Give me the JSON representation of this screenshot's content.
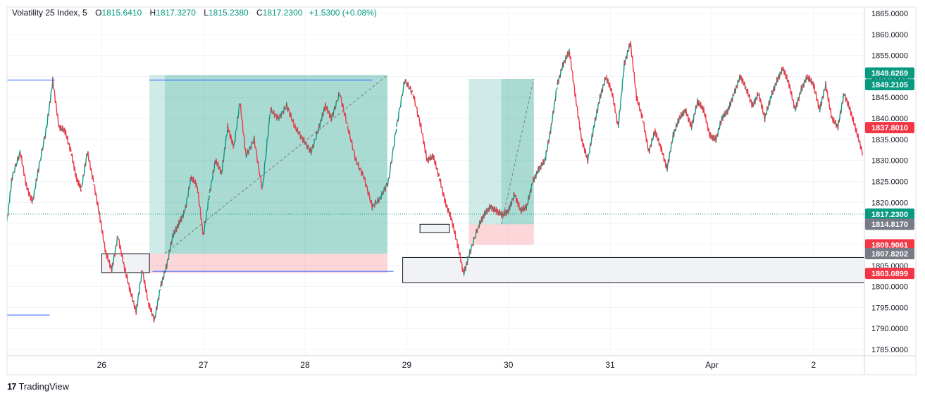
{
  "legend": {
    "symbol": "Volatility 25 Index, 5",
    "o_label": "O",
    "o_value": "1815.6410",
    "h_label": "H",
    "h_value": "1817.3270",
    "l_label": "L",
    "l_value": "1815.2380",
    "c_label": "C",
    "c_value": "1817.2300",
    "change": "+1.5300 (+0.08%)"
  },
  "brand": {
    "logo": "17",
    "name": "TradingView"
  },
  "colors": {
    "up": "#089981",
    "down": "#f23645",
    "profit_zone": "#089981",
    "loss_zone": "#f23645",
    "level_line": "#2962ff",
    "box_fill": "#eceff2"
  },
  "chart_data": {
    "type": "line",
    "title": "",
    "ylim": [
      1783.5,
      1866.5
    ],
    "y_ticks": [
      "1785.0000",
      "1790.0000",
      "1795.0000",
      "1800.0000",
      "1805.0000",
      "1810.0000",
      "1815.0000",
      "1820.0000",
      "1825.0000",
      "1830.0000",
      "1835.0000",
      "1840.0000",
      "1845.0000",
      "1850.0000",
      "1855.0000",
      "1860.0000",
      "1865.0000"
    ],
    "x_ticks": [
      {
        "label": "26",
        "t": 1
      },
      {
        "label": "27",
        "t": 2
      },
      {
        "label": "28",
        "t": 3
      },
      {
        "label": "29",
        "t": 4
      },
      {
        "label": "30",
        "t": 5
      },
      {
        "label": "31",
        "t": 6
      },
      {
        "label": "Apr",
        "t": 7
      },
      {
        "label": "2",
        "t": 8
      }
    ],
    "xlim": [
      0.07,
      8.5
    ],
    "grid": true,
    "series": [
      {
        "values_x": [
          0.07,
          0.12,
          0.2,
          0.26,
          0.32,
          0.38,
          0.46,
          0.52,
          0.58,
          0.64,
          0.7,
          0.75,
          0.8,
          0.86,
          0.92,
          0.98,
          1.04,
          1.1,
          1.16,
          1.22,
          1.28,
          1.34,
          1.4,
          1.46,
          1.52,
          1.58,
          1.64,
          1.7,
          1.76,
          1.82,
          1.88,
          1.94,
          2.0,
          2.06,
          2.12,
          2.18,
          2.24,
          2.3,
          2.36,
          2.42,
          2.5,
          2.58,
          2.66,
          2.74,
          2.82,
          2.9,
          2.98,
          3.06,
          3.14,
          3.2,
          3.26,
          3.34,
          3.42,
          3.5,
          3.58,
          3.66,
          3.74,
          3.82,
          3.9,
          3.98,
          4.06,
          4.14,
          4.2,
          4.26,
          4.32,
          4.38,
          4.44,
          4.5,
          4.56,
          4.62,
          4.7,
          4.76,
          4.82,
          4.88,
          4.94,
          5.0,
          5.06,
          5.12,
          5.18,
          5.24,
          5.3,
          5.36,
          5.42,
          5.48,
          5.54,
          5.6,
          5.66,
          5.72,
          5.78,
          5.84,
          5.9,
          5.96,
          6.02,
          6.08,
          6.14,
          6.2,
          6.26,
          6.32,
          6.38,
          6.44,
          6.5,
          6.56,
          6.62,
          6.68,
          6.74,
          6.8,
          6.86,
          6.92,
          6.98,
          7.04,
          7.1,
          7.16,
          7.22,
          7.28,
          7.34,
          7.4,
          7.46,
          7.52,
          7.58,
          7.64,
          7.7,
          7.76,
          7.82,
          7.88,
          7.94,
          8.0,
          8.06,
          8.12,
          8.18,
          8.24,
          8.3,
          8.36,
          8.42,
          8.48
        ],
        "values": [
          1815.5,
          1826,
          1832,
          1824,
          1820,
          1828,
          1838,
          1849,
          1838,
          1837,
          1832,
          1826,
          1823,
          1832,
          1825,
          1817,
          1808,
          1804,
          1812,
          1805,
          1799,
          1794,
          1804,
          1796,
          1792,
          1800,
          1805,
          1812,
          1815,
          1818,
          1826,
          1824,
          1812,
          1822,
          1830,
          1827,
          1838,
          1833,
          1844,
          1831,
          1835,
          1823,
          1842,
          1840,
          1843,
          1838,
          1835,
          1832,
          1838,
          1843,
          1840,
          1846,
          1838,
          1830,
          1826,
          1819,
          1821,
          1825,
          1838,
          1849,
          1846,
          1838,
          1830,
          1831,
          1826,
          1820,
          1816,
          1810,
          1803,
          1808,
          1814,
          1817,
          1819,
          1818,
          1817,
          1818,
          1822,
          1818,
          1819,
          1825,
          1828,
          1830,
          1838,
          1848,
          1853,
          1856,
          1845,
          1835,
          1830,
          1838,
          1845,
          1850,
          1846,
          1838,
          1853,
          1858,
          1845,
          1840,
          1832,
          1837,
          1833,
          1828,
          1836,
          1840,
          1842,
          1838,
          1844,
          1842,
          1836,
          1835,
          1840,
          1842,
          1846,
          1850,
          1847,
          1843,
          1846,
          1840,
          1845,
          1849,
          1852,
          1848,
          1842,
          1847,
          1850,
          1848,
          1842,
          1848,
          1840,
          1838,
          1846,
          1842,
          1837,
          1832
        ],
        "trace_label": "1849.2105"
      }
    ],
    "price_labels": [
      {
        "value": 1849.6269,
        "text": "1849.6269",
        "kind": "up"
      },
      {
        "value": 1849.2105,
        "text": "1849.2105",
        "kind": "up"
      },
      {
        "value": 1837.801,
        "text": "1837.8010",
        "kind": "down"
      },
      {
        "value": 1817.23,
        "text": "1817.2300",
        "kind": "up"
      },
      {
        "value": 1814.817,
        "text": "1814.8170",
        "kind": "gray"
      },
      {
        "value": 1809.9061,
        "text": "1809.9061",
        "kind": "down"
      },
      {
        "value": 1807.8202,
        "text": "1807.8202",
        "kind": "gray"
      },
      {
        "value": 1803.0899,
        "text": "1803.0899",
        "kind": "down"
      }
    ],
    "current_price": 1817.23,
    "positions": [
      {
        "x0": 1.47,
        "x1": 3.81,
        "entry": 1807.8,
        "target": 1850.3,
        "stop": 1803.2,
        "trade_end": 1.62
      },
      {
        "x0": 4.61,
        "x1": 5.25,
        "entry": 1814.8,
        "target": 1849.4,
        "stop": 1809.9,
        "trade_end": 4.93
      }
    ],
    "boxes": [
      {
        "x0": 1.0,
        "x1": 1.47,
        "y0": 1803.3,
        "y1": 1807.8
      },
      {
        "x0": 4.13,
        "x1": 4.42,
        "y0": 1812.8,
        "y1": 1814.8
      },
      {
        "x0": 3.96,
        "x1": 8.5,
        "y0": 1800.9,
        "y1": 1806.9
      }
    ],
    "level_lines": [
      {
        "x0": 0.07,
        "x1": 0.49,
        "y": 1793.2
      },
      {
        "x0": -0.45,
        "x1": 0.54,
        "y": 1849.1
      },
      {
        "x0": 1.47,
        "x1": 3.66,
        "y": 1849.1
      },
      {
        "x0": 1.5,
        "x1": 3.87,
        "y": 1803.6
      }
    ]
  }
}
